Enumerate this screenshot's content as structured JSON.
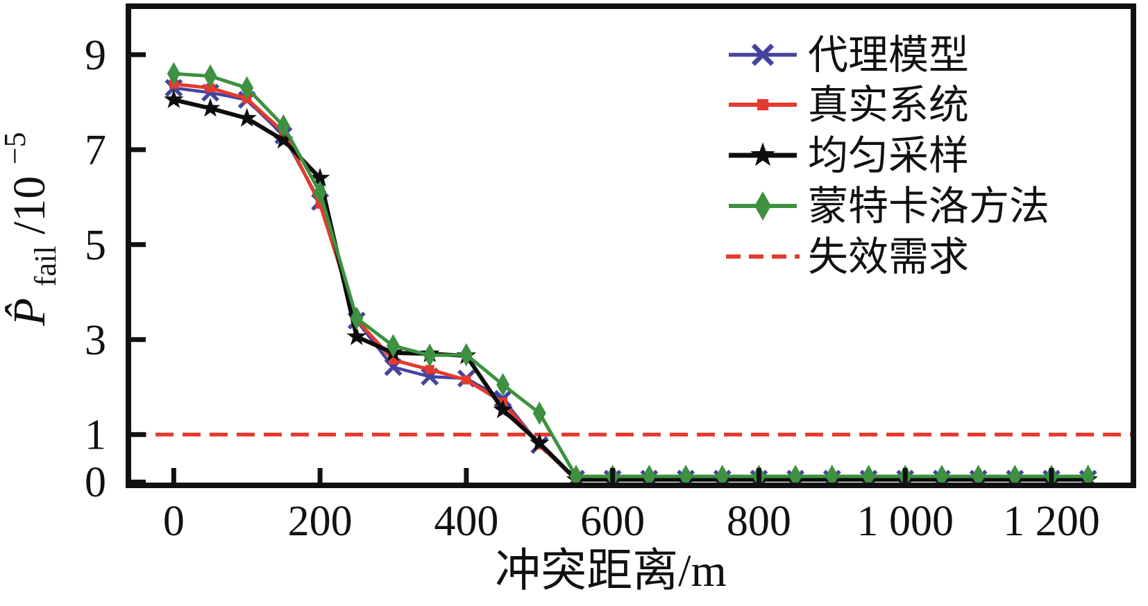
{
  "figure": {
    "background": "#ffffff",
    "axis_color": "#111111",
    "xlabel": "冲突距离/m",
    "ylabel": {
      "main": "P̂",
      "sub": "fail",
      "mid": "/10",
      "sup": "−5"
    },
    "x_tick_labels": [
      "0",
      "200",
      "400",
      "600",
      "800",
      "1 000",
      "1 200"
    ],
    "y_tick_labels": [
      "0",
      "1",
      "3",
      "5",
      "7",
      "9"
    ]
  },
  "chart_data": {
    "type": "line",
    "title": "",
    "xlabel": "冲突距离/m",
    "ylabel": "P̂_fail / 10^-5",
    "xlim": [
      -62,
      1312
    ],
    "ylim": [
      -0.07,
      10.02
    ],
    "grid": false,
    "legend_position": "upper right",
    "x_ticks": [
      0,
      200,
      400,
      600,
      800,
      1000,
      1200
    ],
    "y_ticks": [
      0,
      1,
      3,
      5,
      7,
      9
    ],
    "x": [
      0,
      50,
      100,
      150,
      200,
      250,
      300,
      350,
      400,
      450,
      500,
      550,
      600,
      650,
      700,
      750,
      800,
      850,
      900,
      950,
      1000,
      1050,
      1100,
      1150,
      1200,
      1250
    ],
    "series": [
      {
        "key": "surrogate-model",
        "name": "代理模型",
        "color": "#44449E",
        "marker": "x",
        "line_width": 4.5,
        "values": [
          8.3,
          8.2,
          8.05,
          7.3,
          5.9,
          3.4,
          2.42,
          2.22,
          2.18,
          1.75,
          0.78,
          0.07,
          0.07,
          0.07,
          0.07,
          0.07,
          0.07,
          0.07,
          0.07,
          0.07,
          0.07,
          0.07,
          0.07,
          0.07,
          0.07,
          0.07
        ]
      },
      {
        "key": "real-system",
        "name": "真实系统",
        "color": "#E33B2E",
        "marker": "square",
        "line_width": 5,
        "values": [
          8.38,
          8.3,
          8.07,
          7.37,
          5.85,
          3.42,
          2.57,
          2.37,
          2.15,
          1.68,
          0.78,
          0.05,
          0.05,
          0.05,
          0.05,
          0.05,
          0.05,
          0.05,
          0.05,
          0.05,
          0.05,
          0.05,
          0.05,
          0.05,
          0.05,
          0.05
        ]
      },
      {
        "key": "uniform-sampling",
        "name": "均匀采样",
        "color": "#0D0D0D",
        "marker": "star",
        "line_width": 6,
        "values": [
          8.05,
          7.87,
          7.66,
          7.2,
          6.4,
          3.06,
          2.72,
          2.7,
          2.66,
          1.52,
          0.82,
          0.05,
          0.05,
          0.05,
          0.05,
          0.05,
          0.05,
          0.05,
          0.05,
          0.05,
          0.05,
          0.05,
          0.05,
          0.05,
          0.05,
          0.05
        ]
      },
      {
        "key": "monte-carlo",
        "name": "蒙特卡洛方法",
        "color": "#3D9140",
        "marker": "diamond",
        "line_width": 5,
        "values": [
          8.6,
          8.55,
          8.3,
          7.5,
          6.1,
          3.45,
          2.87,
          2.67,
          2.68,
          2.05,
          1.45,
          0.12,
          0.12,
          0.12,
          0.12,
          0.12,
          0.12,
          0.12,
          0.12,
          0.12,
          0.12,
          0.12,
          0.12,
          0.12,
          0.12,
          0.12
        ]
      },
      {
        "key": "failure-requirement",
        "name": "失效需求",
        "color": "#E33B2E",
        "marker": "none",
        "style": "dashed",
        "line_width": 5.5,
        "const_value": 1
      }
    ]
  }
}
